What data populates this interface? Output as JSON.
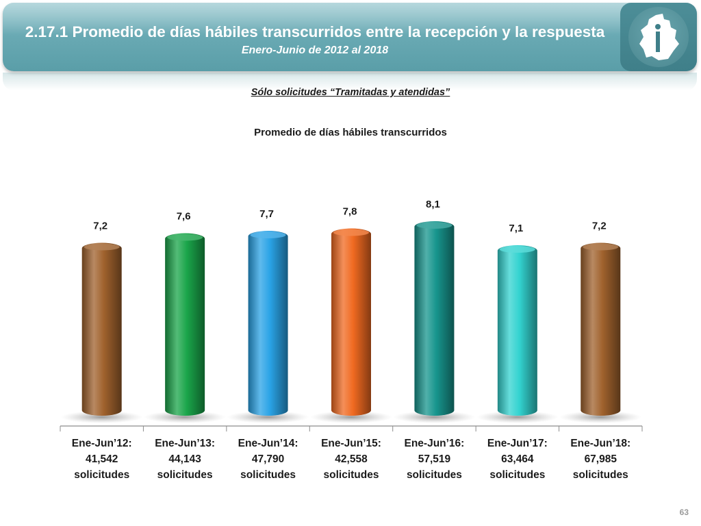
{
  "header": {
    "title": "2.17.1 Promedio de días hábiles transcurridos entre la recepción y la respuesta",
    "subtitle": "Enero-Junio de 2012 al 2018"
  },
  "note": "Sólo solicitudes “Tramitadas y atendidas”",
  "page_number": "63",
  "chart_data": {
    "type": "bar",
    "title": "Promedio de días hábiles transcurridos",
    "categories": [
      [
        "Ene-Jun’12:",
        "41,542",
        "solicitudes"
      ],
      [
        "Ene-Jun’13:",
        "44,143",
        "solicitudes"
      ],
      [
        "Ene-Jun’14:",
        "47,790",
        "solicitudes"
      ],
      [
        "Ene-Jun’15:",
        "42,558",
        "solicitudes"
      ],
      [
        "Ene-Jun’16:",
        "57,519",
        "solicitudes"
      ],
      [
        "Ene-Jun’17:",
        "63,464",
        "solicitudes"
      ],
      [
        "Ene-Jun’18:",
        "67,985",
        "solicitudes"
      ]
    ],
    "values": [
      7.2,
      7.6,
      7.7,
      7.8,
      8.1,
      7.1,
      7.2
    ],
    "value_labels": [
      "7,2",
      "7,6",
      "7,7",
      "7,8",
      "8,1",
      "7,1",
      "7,2"
    ],
    "colors": [
      "#a0622d",
      "#1aa54a",
      "#2aa3e6",
      "#f06a21",
      "#17958d",
      "#33d3d0",
      "#a0622d"
    ],
    "xlabel": "",
    "ylabel": "",
    "ylim": [
      0,
      8.1
    ],
    "grid": false,
    "legend": "none"
  }
}
